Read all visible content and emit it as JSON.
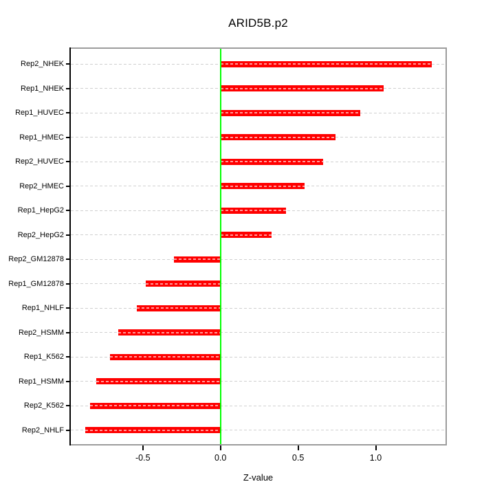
{
  "chart_data": {
    "type": "bar",
    "orientation": "horizontal",
    "title": "ARID5B.p2",
    "xlabel": "Z-value",
    "categories": [
      "Rep2_NHEK",
      "Rep1_NHEK",
      "Rep1_HUVEC",
      "Rep1_HMEC",
      "Rep2_HUVEC",
      "Rep2_HMEC",
      "Rep1_HepG2",
      "Rep2_HepG2",
      "Rep2_GM12878",
      "Rep1_GM12878",
      "Rep1_NHLF",
      "Rep2_HSMM",
      "Rep1_K562",
      "Rep1_HSMM",
      "Rep2_K562",
      "Rep2_NHLF"
    ],
    "values": [
      1.36,
      1.05,
      0.9,
      0.74,
      0.66,
      0.54,
      0.42,
      0.33,
      -0.3,
      -0.48,
      -0.54,
      -0.66,
      -0.71,
      -0.8,
      -0.84,
      -0.87
    ],
    "x_ticks": [
      -0.5,
      0.0,
      0.5,
      1.0
    ],
    "x_tick_labels": [
      "-0.5",
      "0.0",
      "0.5",
      "1.0"
    ],
    "xlim": [
      -0.96,
      1.45
    ],
    "grid": "dashed horizontal line per bar",
    "legend": "none",
    "colors": {
      "bar": "#FF0000",
      "bar_dash_overlay": "#FFA0A0",
      "zero_line": "#00FF00",
      "grid_line": "#CFCFCF",
      "box_border": "#9C9C9C",
      "axis": "#000000",
      "background": "#FFFFFF"
    }
  }
}
